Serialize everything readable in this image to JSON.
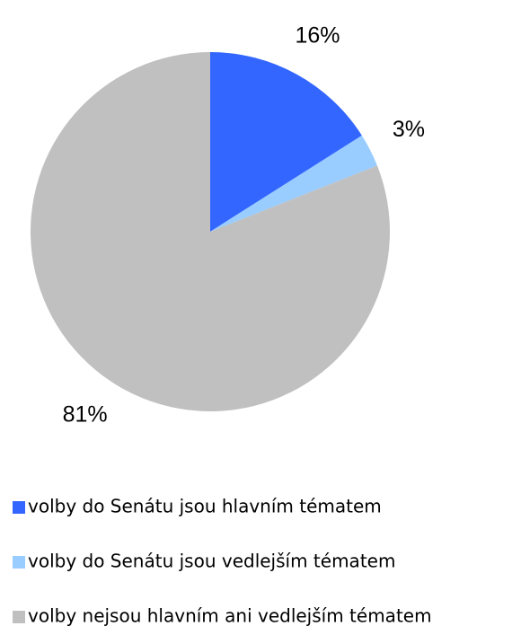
{
  "chart_data": {
    "type": "pie",
    "categories": [
      "volby do Senátu jsou hlavním tématem",
      "volby do Senátu jsou vedlejším tématem",
      "volby nejsou hlavním ani vedlejším tématem"
    ],
    "values": [
      16,
      3,
      81
    ],
    "value_labels": [
      "16%",
      "3%",
      "81%"
    ],
    "colors": [
      "#3366ff",
      "#99ccff",
      "#c0c0c0"
    ]
  }
}
